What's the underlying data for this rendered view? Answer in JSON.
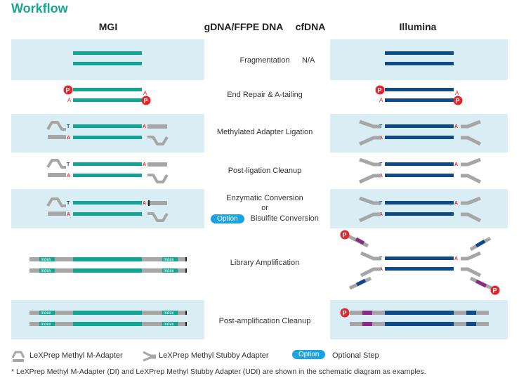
{
  "title": "Workflow",
  "columns": {
    "mgi": "MGI",
    "gdna": "gDNA/FFPE DNA",
    "cfdna": "cfDNA",
    "illumina": "Illumina"
  },
  "steps": [
    {
      "label": "Fragmentation",
      "cf": "N/A"
    },
    {
      "label": "End Repair & A-tailing"
    },
    {
      "label": "Methylated Adapter Ligation"
    },
    {
      "label": "Post-ligation Cleanup"
    },
    {
      "label": "Enzymatic Conversion",
      "or": "or",
      "option": "Option",
      "alt": "Bisulfite Conversion"
    },
    {
      "label": "Library Amplification"
    },
    {
      "label": "Post-amplification Cleanup"
    }
  ],
  "marks": {
    "p": "P",
    "a": "A",
    "t": "T",
    "index": "Index"
  },
  "legend": {
    "m_adapter": "LeXPrep Methyl M-Adapter",
    "stubby": "LeXPrep Methyl Stubby Adapter",
    "option_pill": "Option",
    "optional_step": "Optional Step"
  },
  "footnote": "* LeXPrep Methyl M-Adapter (DI) and LeXPrep Methyl Stubby Adapter (UDI) are shown in the schematic diagram as examples.",
  "colors": {
    "teal": "#13a392",
    "navy": "#0d4a86",
    "grey": "#a6a6a6",
    "red": "#e3262d",
    "purple": "#8b2a87",
    "panel": "#d9eef4",
    "pill": "#1aa3e0"
  }
}
